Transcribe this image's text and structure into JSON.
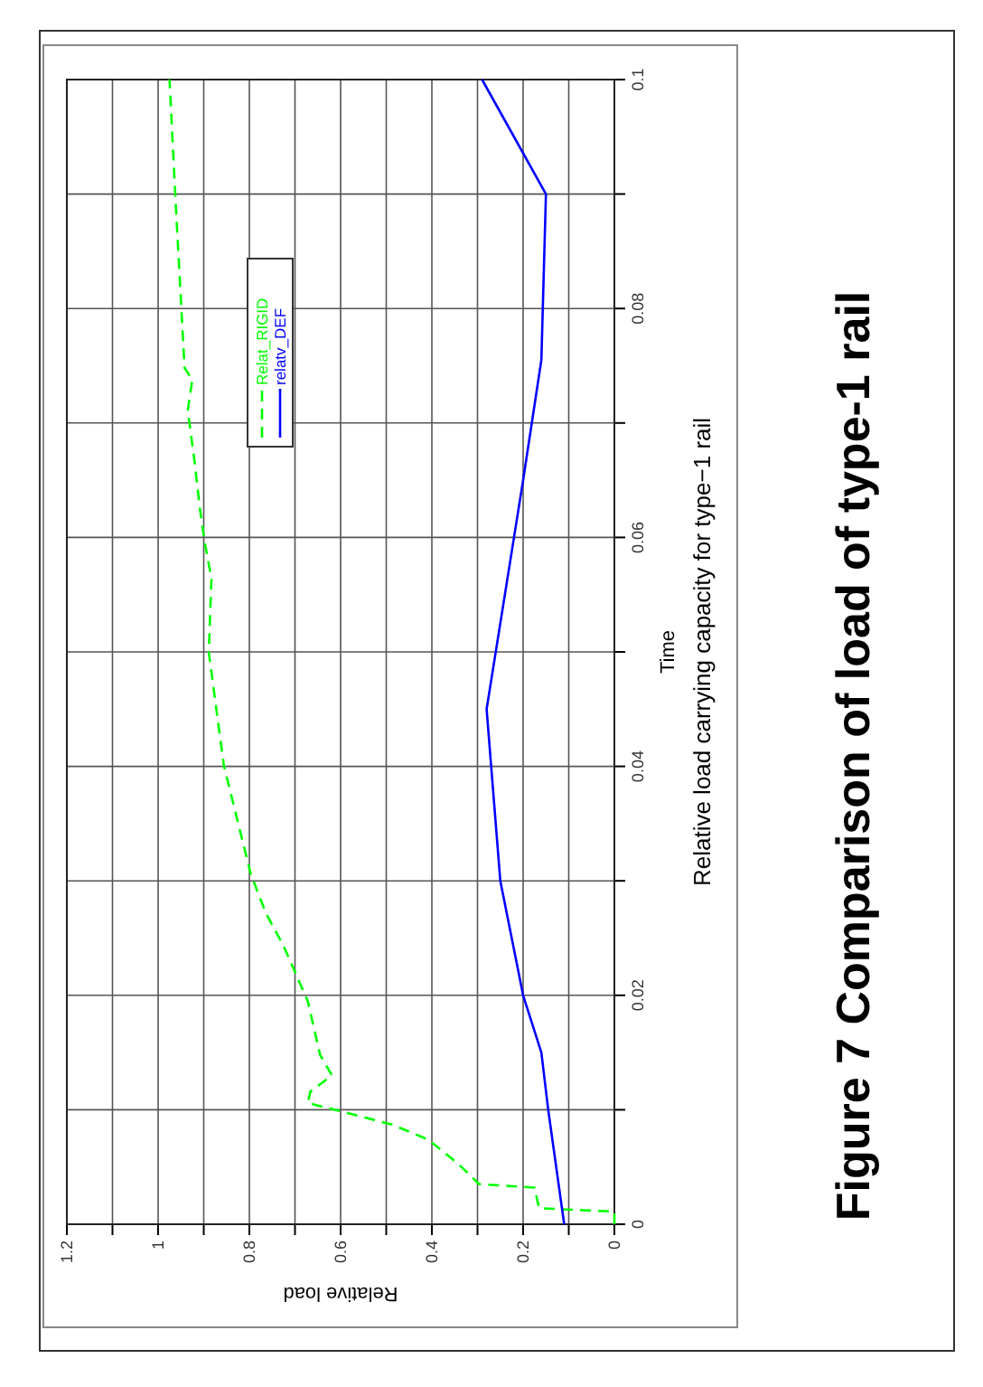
{
  "chart_data": {
    "type": "line",
    "title": "Figure 7 Comparison of load of  type-1 rail",
    "xlabel": "Relative load",
    "ylabel": "Time",
    "annotations": [
      "Relative load carrying capacity for type−1 rail"
    ],
    "xlim": [
      1.2,
      0
    ],
    "ylim": [
      0,
      0.1
    ],
    "xticks": [
      1.2,
      {
        "value": 1.1,
        "label": null
      },
      1,
      {
        "value": 0.9,
        "label": null
      },
      0.8,
      {
        "value": 0.7,
        "label": null
      },
      0.6,
      {
        "value": 0.5,
        "label": null
      },
      0.4,
      {
        "value": 0.3,
        "label": null
      },
      0.2,
      {
        "value": 0.1,
        "label": null
      },
      0
    ],
    "yticks": [
      0,
      {
        "value": 0.01,
        "label": null
      },
      0.02,
      {
        "value": 0.03,
        "label": null
      },
      0.04,
      {
        "value": 0.05,
        "label": null
      },
      0.06,
      {
        "value": 0.07,
        "label": null
      },
      0.08,
      {
        "value": 0.09,
        "label": null
      },
      0.1
    ],
    "grid": true,
    "legend": "top",
    "series": [
      {
        "name": "Relat_RIGID",
        "color": "#00ff00",
        "line_style": "dashed",
        "x": [
          0,
          0,
          0.165,
          0.175,
          0.296,
          0.343,
          0.408,
          0.487,
          0.593,
          0.672,
          0.666,
          0.619,
          0.645,
          0.672,
          0.725,
          0.764,
          0.797,
          0.856,
          0.889,
          0.883,
          0.898,
          0.909,
          0.92,
          0.935,
          0.925,
          0.942,
          0.962,
          0.975
        ],
        "values": [
          0,
          0.0011,
          0.0014,
          0.0032,
          0.0035,
          0.0053,
          0.0074,
          0.0087,
          0.0098,
          0.0106,
          0.0116,
          0.013,
          0.0148,
          0.0195,
          0.0243,
          0.0272,
          0.0306,
          0.0401,
          0.05,
          0.0564,
          0.0596,
          0.0627,
          0.0666,
          0.0711,
          0.0738,
          0.0748,
          0.0896,
          0.1
        ]
      },
      {
        "name": "relatv_DEF",
        "color": "#0000ff",
        "line_style": "solid",
        "x": [
          0.11,
          0.145,
          0.16,
          0.2,
          0.25,
          0.28,
          0.22,
          0.2,
          0.16,
          0.15,
          0.29
        ],
        "values": [
          0,
          0.01,
          0.015,
          0.02,
          0.03,
          0.045,
          0.06,
          0.065,
          0.0755,
          0.09,
          0.1
        ]
      }
    ]
  }
}
